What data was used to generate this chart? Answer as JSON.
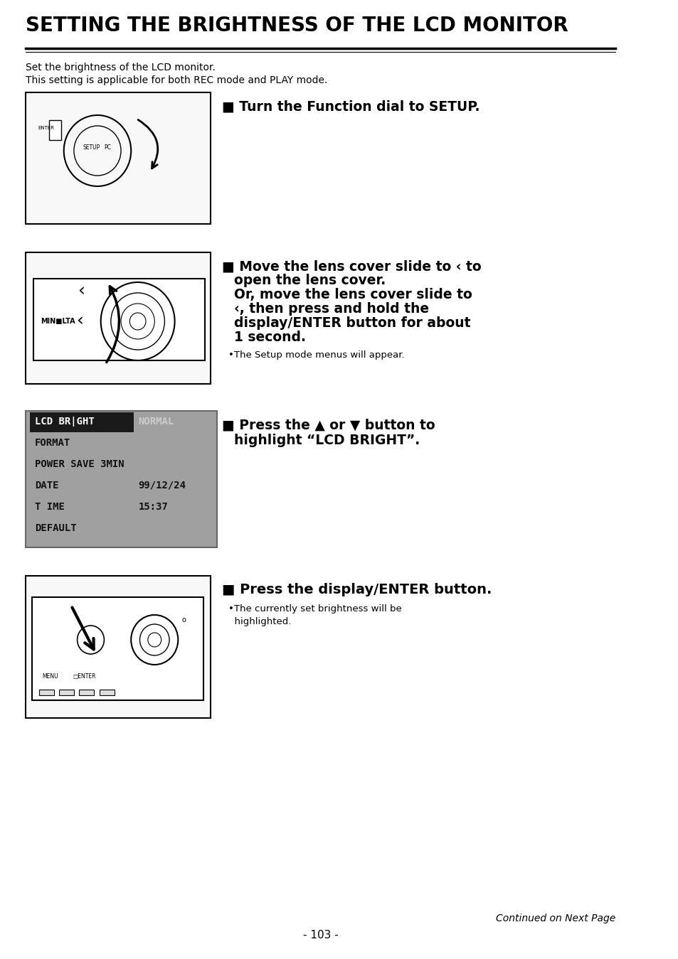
{
  "title": "SETTING THE BRIGHTNESS OF THE LCD MONITOR",
  "subtitle_lines": [
    "Set the brightness of the LCD monitor.",
    "This setting is applicable for both REC mode and PLAY mode."
  ],
  "steps": [
    {
      "number": "1",
      "text_lines": [
        "Turn the Function dial to SETUP."
      ],
      "bold": true
    },
    {
      "number": "2",
      "text_lines": [
        "Move the lens cover slide to ‹ to",
        "open the lens cover.",
        "Or, move the lens cover slide to",
        "‹, then press and hold the",
        "display∕ENTER button for about",
        "1 second."
      ],
      "bold": true,
      "bullet": "The Setup mode menus will appear."
    },
    {
      "number": "3",
      "text_lines": [
        "Press the ▲ or ▼ button to",
        "highlight “LCD BRIGHT”."
      ],
      "bold": true
    },
    {
      "number": "4",
      "text_lines": [
        "Press the display/ENTER button."
      ],
      "bold": true,
      "bullet": "The currently set brightness will be\nhighlighted."
    }
  ],
  "menu_rows": [
    {
      "highlight": true,
      "left": "LCD BR|GHT",
      "right": "NORMAL"
    },
    {
      "highlight": false,
      "left": "FORMAT",
      "right": ""
    },
    {
      "highlight": false,
      "left": "POWER SAVE 3MIN",
      "right": ""
    },
    {
      "highlight": false,
      "left": "DATE",
      "right": "99/12/24"
    },
    {
      "highlight": false,
      "left": "T IME",
      "right": "15:37"
    },
    {
      "highlight": false,
      "left": "DEFAULT",
      "right": ""
    }
  ],
  "footer": "Continued on Next Page",
  "page_number": "- 103 -",
  "bg_color": "#ffffff",
  "title_color": "#000000",
  "menu_bg": "#a0a0a0",
  "menu_highlight_bg": "#1a1a1a",
  "menu_highlight_fg": "#ffffff",
  "menu_normal_fg": "#111111"
}
